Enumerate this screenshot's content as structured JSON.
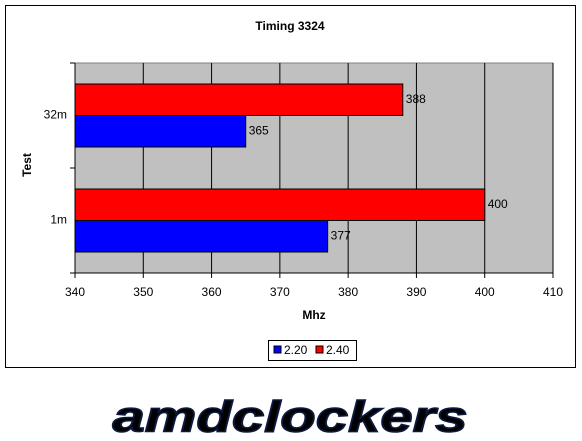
{
  "chart_data": {
    "type": "bar",
    "orientation": "horizontal",
    "title": "Timing 3324",
    "x_label": "Mhz",
    "y_label": "Test",
    "categories": [
      "1m",
      "32m"
    ],
    "series": [
      {
        "name": "2.20",
        "color": "#0000ff",
        "values": [
          377,
          365
        ]
      },
      {
        "name": "2.40",
        "color": "#ff0000",
        "values": [
          400,
          388
        ]
      }
    ],
    "xlim": [
      340,
      410
    ],
    "xticks": [
      340,
      350,
      360,
      370,
      380,
      390,
      400,
      410
    ],
    "grid": true,
    "legend": "bottom"
  },
  "logo_text": "amdclockers"
}
